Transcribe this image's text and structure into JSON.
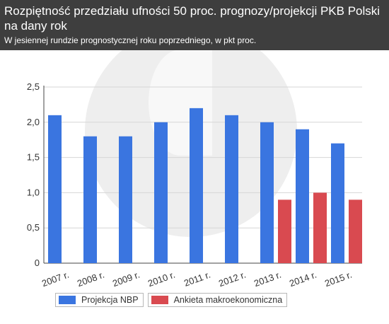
{
  "header": {
    "title": "Rozpiętność przedziału ufności 50 proc. prognozy/projekcji PKB Polski na dany rok",
    "subtitle": "W jesiennej rundzie prognostycznej roku poprzedniego, w pkt proc."
  },
  "colors": {
    "projekcja": "#3a75e0",
    "ankieta": "#d94a50",
    "header_bg": "#3e3e3e",
    "axis": "#444444",
    "grid": "#d6d6d6"
  },
  "chart_data": {
    "type": "bar",
    "title": "Rozpiętność przedziału ufności 50 proc. prognozy/projekcji PKB Polski na dany rok",
    "subtitle": "W jesiennej rundzie prognostycznej roku poprzedniego, w pkt proc.",
    "categories": [
      "2007 r.",
      "2008 r.",
      "2009 r.",
      "2010 r.",
      "2011 r.",
      "2012 r.",
      "2013 r.",
      "2014 r.",
      "2015 r."
    ],
    "series": [
      {
        "name": "Projekcja NBP",
        "values": [
          2.1,
          1.8,
          1.8,
          2.0,
          2.2,
          2.1,
          2.0,
          1.9,
          1.7
        ]
      },
      {
        "name": "Ankieta makroekonomiczna",
        "values": [
          null,
          null,
          null,
          null,
          null,
          null,
          0.9,
          1.0,
          0.9
        ]
      }
    ],
    "ylim": [
      0,
      2.5
    ],
    "yticks": [
      "0",
      "0,5",
      "1,0",
      "1,5",
      "2,0",
      "2,5"
    ],
    "yticks_values": [
      0,
      0.5,
      1.0,
      1.5,
      2.0,
      2.5
    ],
    "grid": true,
    "legend_position": "bottom-left"
  }
}
